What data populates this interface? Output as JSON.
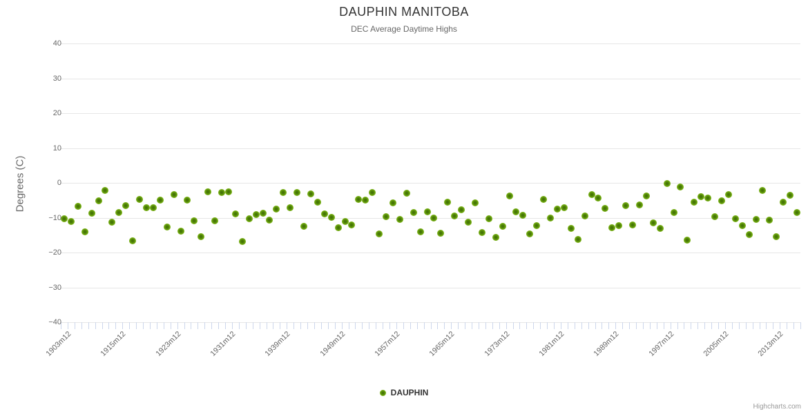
{
  "chart_data": {
    "type": "scatter",
    "title": "DAUPHIN MANITOBA",
    "subtitle": "DEC Average Daytime Highs",
    "xlabel": "",
    "ylabel": "Degrees (C)",
    "ylim": [
      -40,
      40
    ],
    "y_ticks": [
      40,
      30,
      20,
      10,
      0,
      -10,
      -20,
      -30,
      -40
    ],
    "x_tick_labels": [
      "1903m12",
      "1915m12",
      "1923m12",
      "1931m12",
      "1939m12",
      "1949m12",
      "1957m12",
      "1965m12",
      "1973m12",
      "1981m12",
      "1989m12",
      "1997m12",
      "2005m12",
      "2013m12"
    ],
    "x_label_every_n_points": 8,
    "grid": true,
    "legend_position": "bottom-center",
    "marker_color": "#76ae14",
    "series": [
      {
        "name": "DAUPHIN",
        "values": [
          -10.2,
          -11.0,
          -6.8,
          -14.0,
          -8.8,
          -5.2,
          -2.2,
          -11.2,
          -8.6,
          -6.6,
          -16.6,
          -4.8,
          -7.2,
          -7.2,
          -5.0,
          -12.6,
          -3.4,
          -13.9,
          -4.9,
          -10.9,
          -15.5,
          -2.5,
          -10.8,
          -2.8,
          -2.5,
          -9.0,
          -16.8,
          -10.2,
          -9.1,
          -8.7,
          -10.6,
          -7.5,
          -2.7,
          -7.2,
          -2.7,
          -12.4,
          -3.1,
          -5.5,
          -9.0,
          -9.9,
          -12.9,
          -11.1,
          -12.0,
          -4.7,
          -5.0,
          -2.7,
          -14.6,
          -9.7,
          -5.8,
          -10.4,
          -2.9,
          -8.5,
          -14.0,
          -8.3,
          -10.1,
          -14.5,
          -5.5,
          -9.5,
          -7.7,
          -11.2,
          -5.7,
          -14.3,
          -10.3,
          -15.6,
          -12.5,
          -3.7,
          -8.3,
          -9.3,
          -14.7,
          -12.2,
          -4.8,
          -10.1,
          -7.6,
          -7.1,
          -13.1,
          -16.3,
          -9.5,
          -3.3,
          -4.3,
          -7.3,
          -12.9,
          -12.2,
          -6.5,
          -12.0,
          -6.3,
          -3.7,
          -11.4,
          -13.1,
          -0.2,
          -8.5,
          -1.1,
          -16.4,
          -5.6,
          -4.0,
          -4.4,
          -9.7,
          -5.1,
          -3.3,
          -10.2,
          -12.3,
          -14.9,
          -10.4,
          -2.2,
          -10.7,
          -15.4,
          -5.5,
          -3.5,
          -8.5
        ]
      }
    ]
  },
  "credits": "Highcharts.com"
}
